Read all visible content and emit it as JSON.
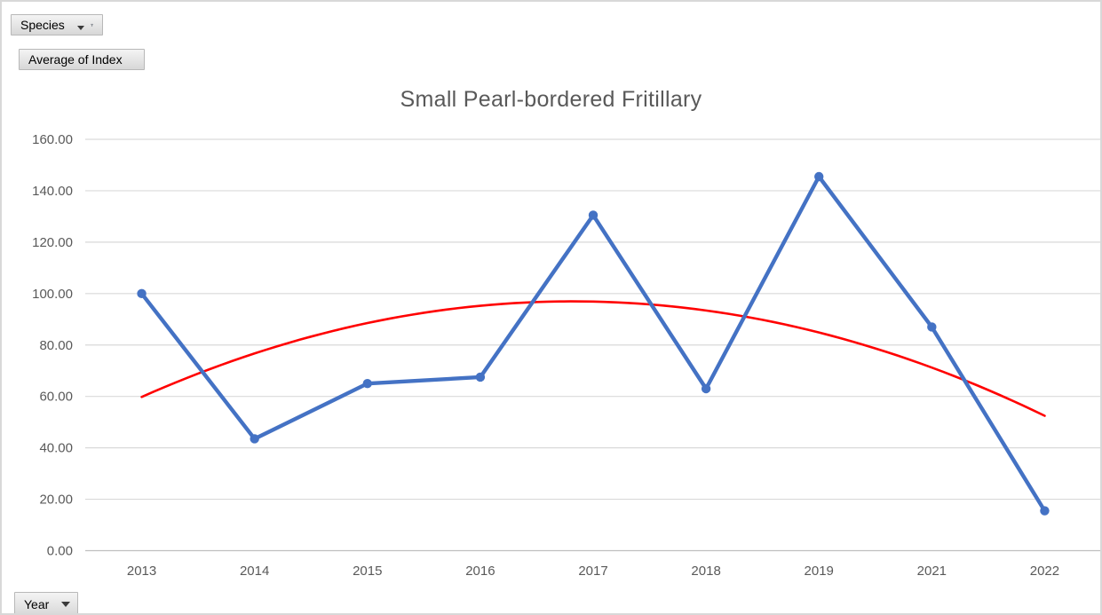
{
  "pivot_fields": {
    "species_filter": {
      "label": "Species"
    },
    "value_field": {
      "label": "Average of Index"
    },
    "axis_field": {
      "label": "Year"
    }
  },
  "chart_data": {
    "type": "line",
    "title": "Small Pearl-bordered Fritillary",
    "categories": [
      "2013",
      "2014",
      "2015",
      "2016",
      "2017",
      "2018",
      "2019",
      "2021",
      "2022"
    ],
    "series": [
      {
        "name": "Average of Index",
        "color": "#4472C4",
        "marker": "circle",
        "values": [
          100,
          43.5,
          65,
          67.5,
          130.5,
          63,
          145.5,
          87,
          15.5
        ]
      }
    ],
    "trendline": {
      "type": "polynomial",
      "order": 2,
      "color": "#FF0000",
      "coefficients": {
        "a": -2.547,
        "b": 19.46,
        "c": 59.8
      },
      "values_at_categories": [
        59.8,
        76.7,
        88.5,
        95.3,
        96.9,
        93.4,
        84.9,
        71.2,
        52.5
      ]
    },
    "xlabel": "",
    "ylabel": "",
    "ylim": [
      0,
      160
    ],
    "ytick_step": 20,
    "ytick_decimals": 2,
    "legend": "none",
    "grid": "horizontal",
    "colors": {
      "gridline": "#D9D9D9",
      "axis_line": "#BFBFBF",
      "tick_label": "#595959",
      "title": "#595959"
    }
  }
}
